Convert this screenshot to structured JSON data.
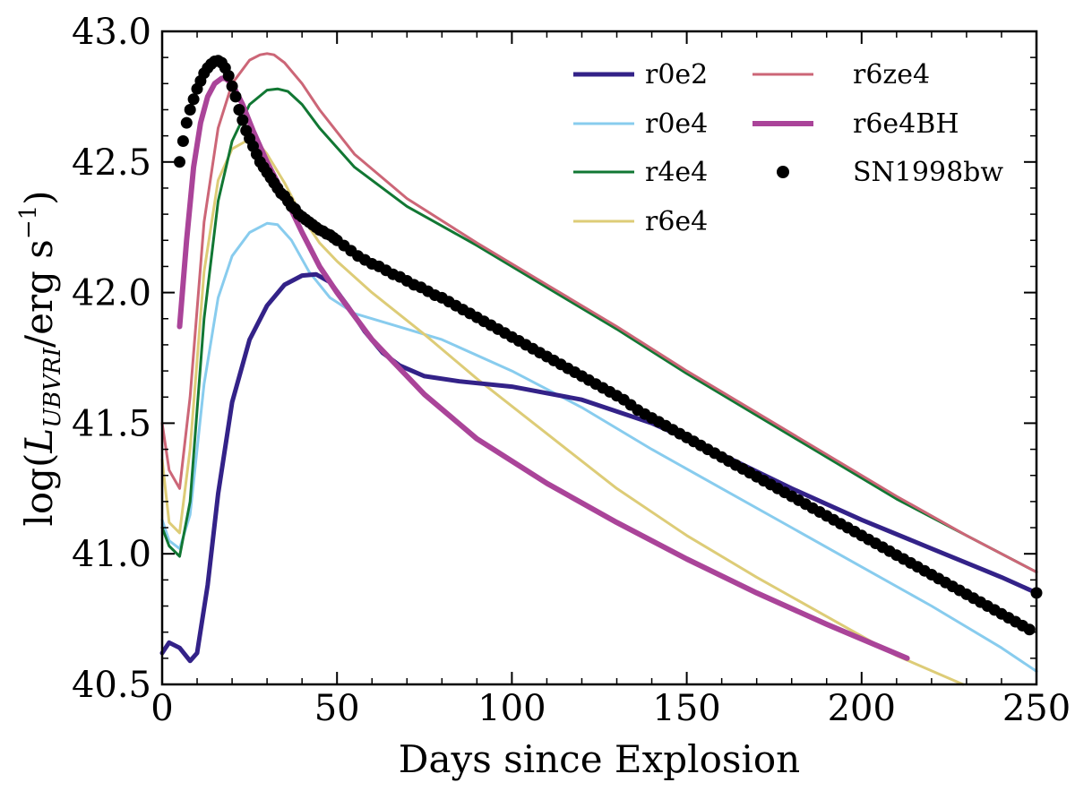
{
  "chart_data": {
    "type": "line",
    "title": "",
    "xlabel": "Days since Explosion",
    "ylabel": "log(L_UBVRI/erg s^-1)",
    "ylabel_parts": {
      "prefix": "log(",
      "symbol": "L",
      "subscript": "UBVRI",
      "mid": "/erg s",
      "superscript": "−1",
      "suffix": ")"
    },
    "xlim": [
      0,
      250
    ],
    "ylim": [
      40.5,
      43.0
    ],
    "xticks": [
      0,
      50,
      100,
      150,
      200,
      250
    ],
    "xtick_labels": [
      "0",
      "50",
      "100",
      "150",
      "200",
      "250"
    ],
    "yticks": [
      40.5,
      41.0,
      41.5,
      42.0,
      42.5,
      43.0
    ],
    "ytick_labels": [
      "40.5",
      "41.0",
      "41.5",
      "42.0",
      "42.5",
      "43.0"
    ],
    "grid": false,
    "legend_position": "top-right",
    "series": [
      {
        "name": "r0e2",
        "color": "#332288",
        "width": 5,
        "x": [
          0,
          2,
          5,
          8,
          10,
          13,
          16,
          20,
          25,
          30,
          35,
          40,
          44,
          48,
          53,
          58,
          63,
          68,
          75,
          85,
          100,
          120,
          140,
          160,
          180,
          200,
          220,
          240,
          250
        ],
        "y": [
          40.62,
          40.66,
          40.64,
          40.59,
          40.62,
          40.88,
          41.23,
          41.58,
          41.82,
          41.95,
          42.03,
          42.065,
          42.07,
          42.04,
          41.95,
          41.85,
          41.77,
          41.72,
          41.68,
          41.66,
          41.64,
          41.59,
          41.5,
          41.38,
          41.25,
          41.13,
          41.02,
          40.91,
          40.85
        ]
      },
      {
        "name": "r0e4",
        "color": "#88ccee",
        "width": 3,
        "x": [
          0,
          2,
          5,
          8,
          12,
          16,
          20,
          25,
          30,
          33,
          37,
          42,
          48,
          55,
          65,
          80,
          100,
          120,
          140,
          160,
          180,
          200,
          220,
          240,
          250
        ],
        "y": [
          41.13,
          41.05,
          41.02,
          41.15,
          41.65,
          41.98,
          42.14,
          42.23,
          42.265,
          42.26,
          42.2,
          42.08,
          41.98,
          41.92,
          41.88,
          41.82,
          41.7,
          41.56,
          41.4,
          41.25,
          41.1,
          40.95,
          40.8,
          40.64,
          40.55
        ]
      },
      {
        "name": "r4e4",
        "color": "#117733",
        "width": 3,
        "x": [
          0,
          2,
          5,
          8,
          12,
          16,
          20,
          25,
          30,
          33,
          36,
          40,
          45,
          55,
          70,
          90,
          110,
          130,
          150,
          170,
          190,
          210,
          230,
          250
        ],
        "y": [
          41.1,
          41.03,
          40.99,
          41.2,
          41.9,
          42.35,
          42.58,
          42.72,
          42.775,
          42.78,
          42.77,
          42.72,
          42.63,
          42.48,
          42.33,
          42.18,
          42.02,
          41.86,
          41.69,
          41.53,
          41.37,
          41.21,
          41.07,
          40.93
        ]
      },
      {
        "name": "r6e4",
        "color": "#ddcc77",
        "width": 3,
        "x": [
          0,
          2,
          5,
          8,
          12,
          16,
          20,
          24,
          27,
          30,
          35,
          40,
          45,
          50,
          60,
          75,
          90,
          110,
          130,
          150,
          170,
          190,
          210,
          229
        ],
        "y": [
          41.36,
          41.12,
          41.08,
          41.4,
          42.08,
          42.43,
          42.55,
          42.58,
          42.58,
          42.53,
          42.42,
          42.29,
          42.19,
          42.12,
          42.0,
          41.84,
          41.67,
          41.46,
          41.25,
          41.07,
          40.91,
          40.76,
          40.61,
          40.5
        ]
      },
      {
        "name": "r6ze4",
        "color": "#cc6677",
        "width": 3,
        "x": [
          0,
          2,
          5,
          8,
          12,
          16,
          20,
          25,
          28,
          30,
          32,
          35,
          40,
          45,
          55,
          70,
          90,
          110,
          130,
          150,
          170,
          190,
          210,
          230,
          250
        ],
        "y": [
          41.5,
          41.32,
          41.25,
          41.6,
          42.27,
          42.63,
          42.8,
          42.89,
          42.91,
          42.915,
          42.91,
          42.88,
          42.8,
          42.7,
          42.53,
          42.36,
          42.19,
          42.03,
          41.87,
          41.7,
          41.54,
          41.38,
          41.22,
          41.07,
          40.93
        ]
      },
      {
        "name": "r6e4BH",
        "color": "#aa4499",
        "width": 6,
        "x": [
          5,
          7,
          9,
          11,
          13,
          15,
          17,
          18,
          20,
          23,
          26,
          30,
          35,
          40,
          45,
          50,
          60,
          75,
          90,
          110,
          130,
          150,
          170,
          190,
          213
        ],
        "y": [
          41.87,
          42.2,
          42.48,
          42.65,
          42.75,
          42.8,
          42.82,
          42.82,
          42.8,
          42.72,
          42.62,
          42.5,
          42.37,
          42.23,
          42.1,
          42.0,
          41.82,
          41.61,
          41.44,
          41.27,
          41.12,
          40.98,
          40.85,
          40.73,
          40.6
        ]
      },
      {
        "name": "SN1998bw",
        "color": "#000000",
        "width": 0,
        "marker": "dot",
        "x": [
          5,
          6,
          7,
          8,
          9,
          10,
          11,
          12,
          13,
          14,
          15,
          16,
          17,
          18,
          19,
          20,
          21,
          22,
          23,
          24,
          25,
          26,
          27,
          28,
          29,
          30,
          31,
          32,
          33,
          34,
          35,
          36,
          37,
          38,
          39,
          40,
          41,
          42,
          43,
          44,
          45,
          46,
          47,
          48,
          49,
          50,
          52,
          54,
          56,
          58,
          60,
          62,
          64,
          66,
          68,
          70,
          72,
          74,
          76,
          78,
          80,
          82,
          84,
          86,
          88,
          90,
          92,
          94,
          96,
          98,
          100,
          102,
          104,
          106,
          108,
          110,
          112,
          114,
          116,
          118,
          120,
          122,
          124,
          126,
          128,
          130,
          132,
          134,
          136,
          138,
          140,
          142,
          144,
          146,
          148,
          150,
          152,
          154,
          156,
          158,
          160,
          162,
          164,
          166,
          168,
          170,
          172,
          174,
          176,
          178,
          180,
          182,
          184,
          186,
          188,
          190,
          192,
          194,
          196,
          198,
          200,
          202,
          204,
          206,
          208,
          210,
          212,
          214,
          216,
          218,
          220,
          222,
          224,
          226,
          228,
          230,
          232,
          234,
          236,
          238,
          240,
          242,
          244,
          246,
          248,
          250
        ],
        "y": [
          42.5,
          42.58,
          42.65,
          42.7,
          42.74,
          42.78,
          42.81,
          42.84,
          42.86,
          42.875,
          42.885,
          42.888,
          42.88,
          42.86,
          42.83,
          42.79,
          42.75,
          42.7,
          42.66,
          42.62,
          42.59,
          42.56,
          42.53,
          42.5,
          42.48,
          42.46,
          42.44,
          42.42,
          42.4,
          42.38,
          42.37,
          42.35,
          42.33,
          42.32,
          42.3,
          42.29,
          42.28,
          42.27,
          42.26,
          42.25,
          42.24,
          42.235,
          42.225,
          42.22,
          42.21,
          42.2,
          42.18,
          42.16,
          42.14,
          42.125,
          42.11,
          42.1,
          42.085,
          42.07,
          42.06,
          42.045,
          42.03,
          42.02,
          42.005,
          41.99,
          41.98,
          41.965,
          41.95,
          41.935,
          41.92,
          41.905,
          41.89,
          41.875,
          41.86,
          41.845,
          41.83,
          41.815,
          41.8,
          41.785,
          41.77,
          41.755,
          41.74,
          41.725,
          41.71,
          41.695,
          41.68,
          41.665,
          41.65,
          41.635,
          41.62,
          41.605,
          41.59,
          41.57,
          41.55,
          41.535,
          41.52,
          41.505,
          41.49,
          41.475,
          41.46,
          41.445,
          41.43,
          41.415,
          41.4,
          41.385,
          41.37,
          41.355,
          41.34,
          41.325,
          41.31,
          41.295,
          41.28,
          41.265,
          41.25,
          41.235,
          41.22,
          41.205,
          41.19,
          41.175,
          41.16,
          41.145,
          41.13,
          41.115,
          41.1,
          41.085,
          41.07,
          41.055,
          41.04,
          41.025,
          41.01,
          40.995,
          40.98,
          40.965,
          40.95,
          40.935,
          40.92,
          40.905,
          40.89,
          40.875,
          40.86,
          40.845,
          40.83,
          40.815,
          40.8,
          40.785,
          40.77,
          40.755,
          40.74,
          40.725,
          40.71,
          40.85
        ]
      }
    ],
    "legend_columns": [
      [
        "r0e2",
        "r0e4",
        "r4e4",
        "r6e4"
      ],
      [
        "r6ze4",
        "r6e4BH",
        "SN1998bw"
      ]
    ]
  }
}
